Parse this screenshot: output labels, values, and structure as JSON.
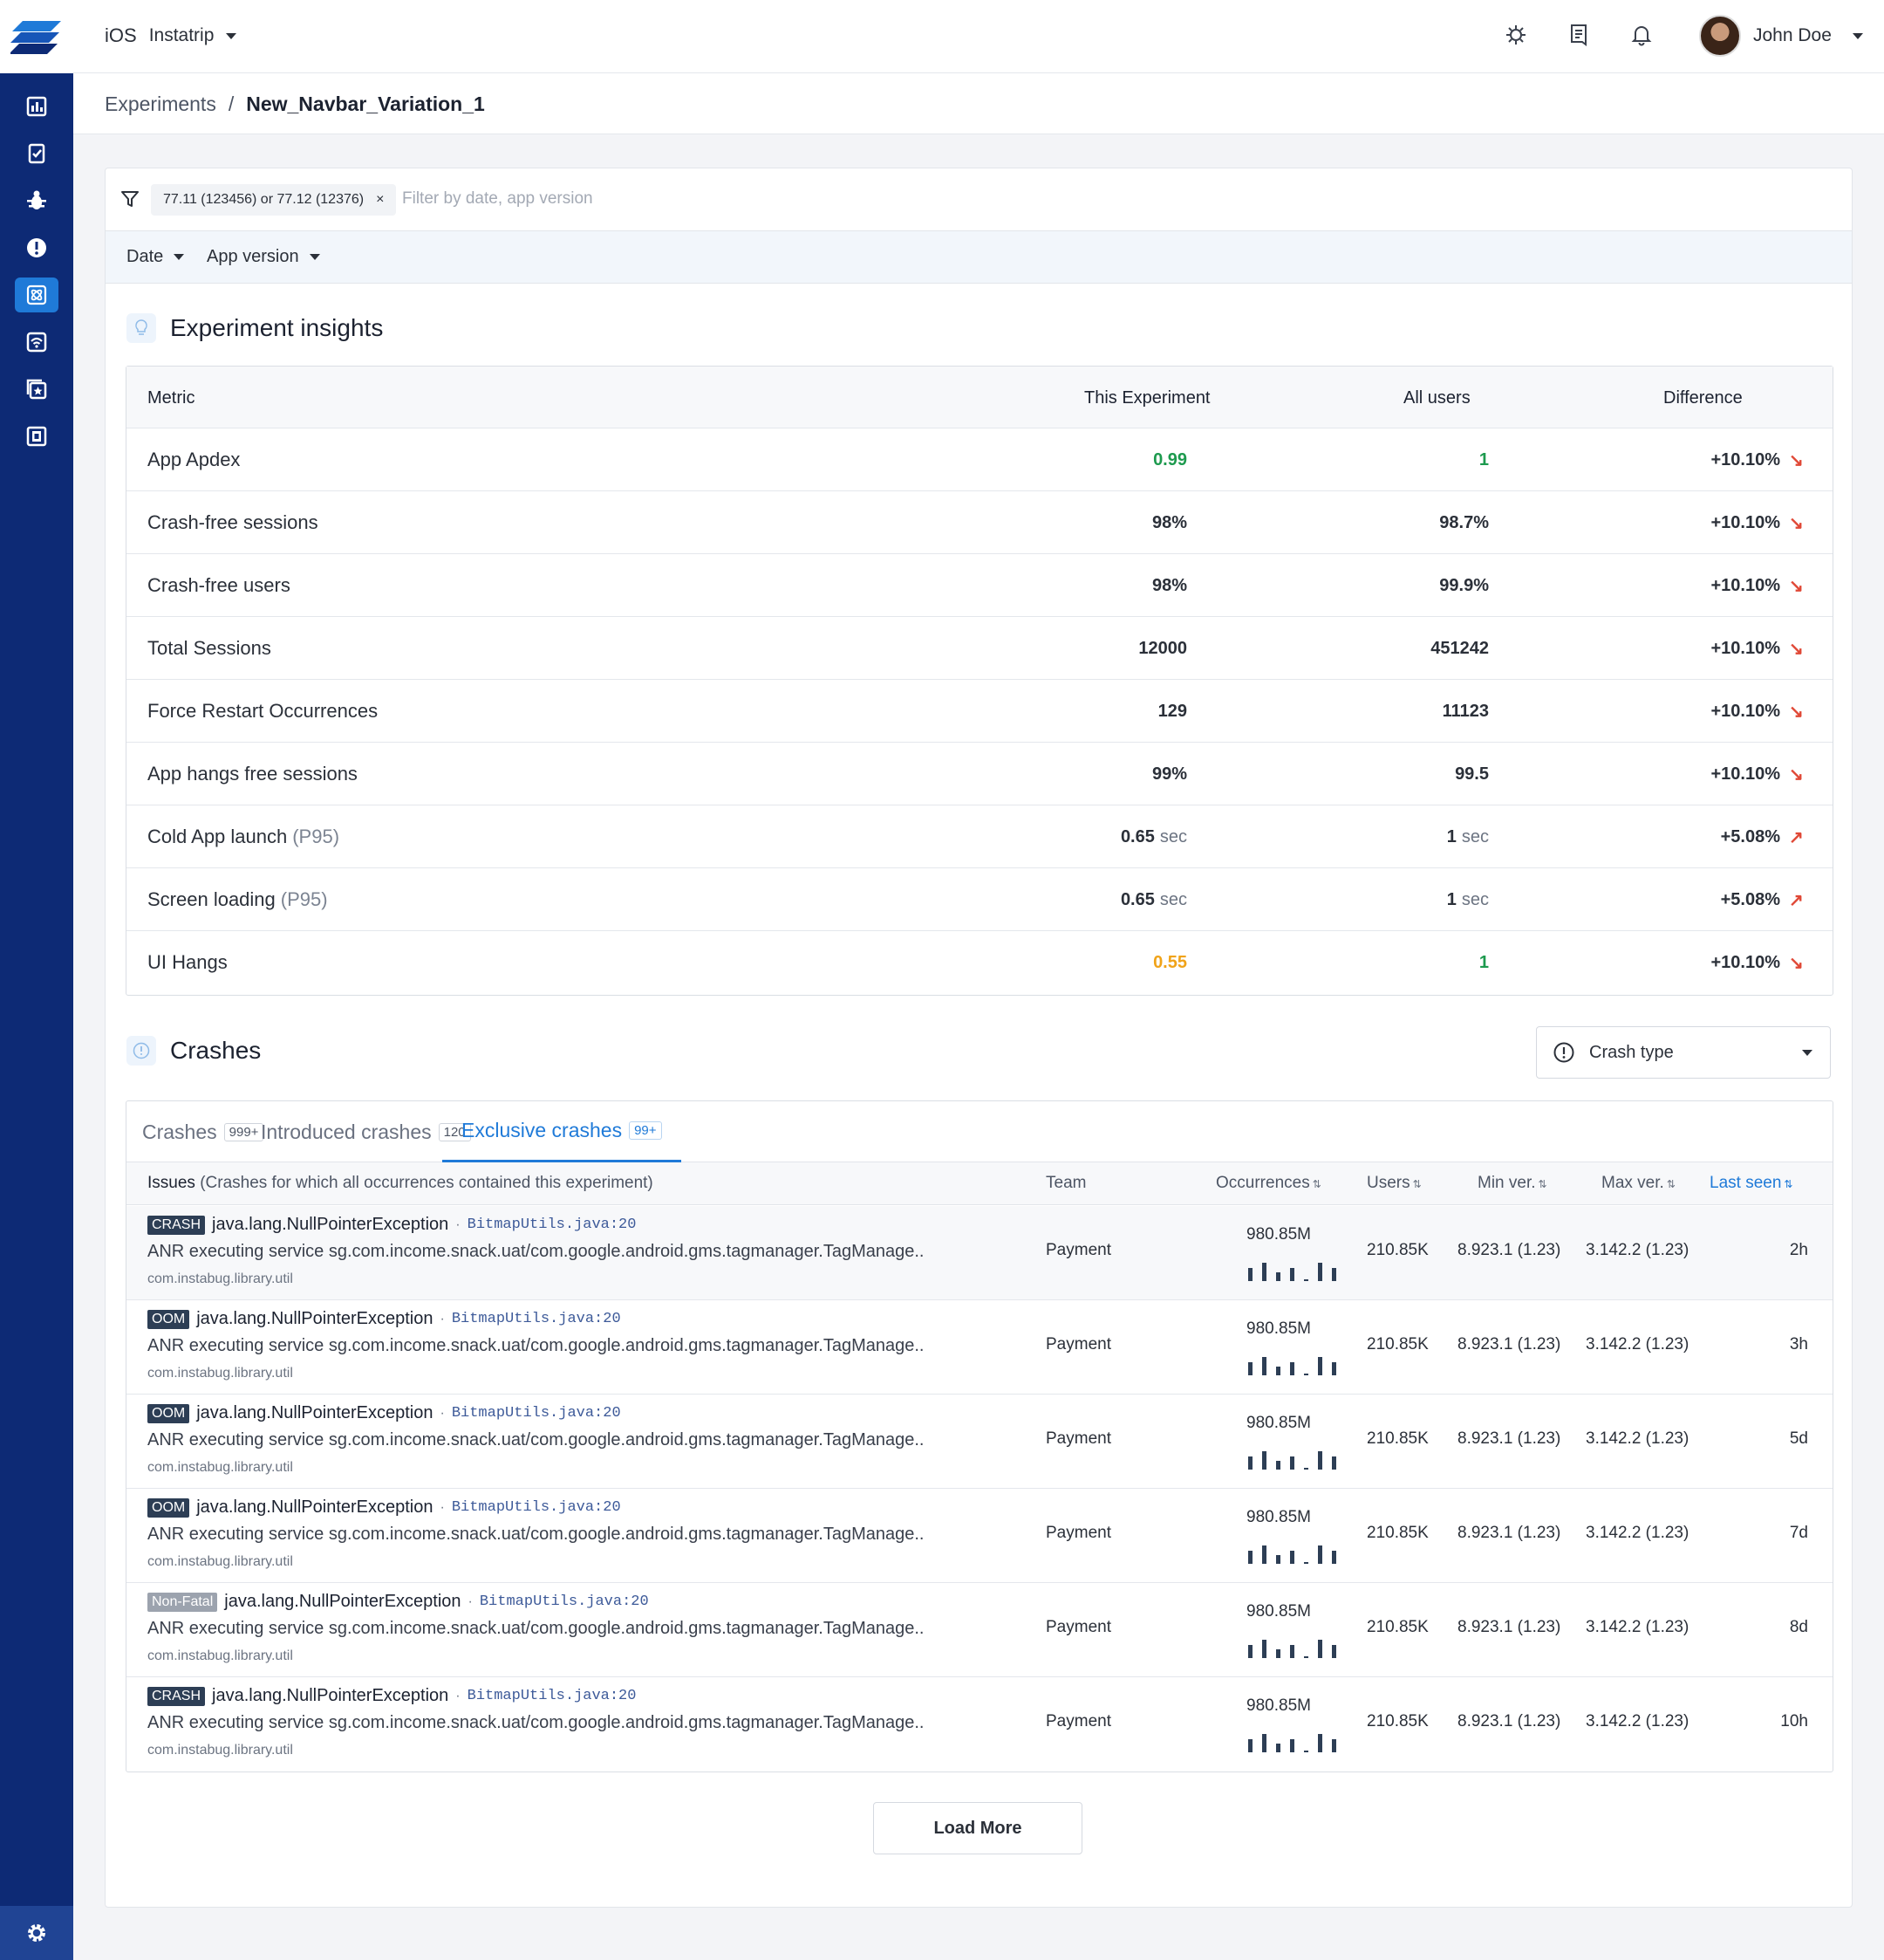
{
  "header": {
    "platform": "iOS",
    "app_name": "Instatrip",
    "user_name": "John Doe"
  },
  "breadcrumb": {
    "parent": "Experiments",
    "separator": "/",
    "current": "New_Navbar_Variation_1"
  },
  "filter": {
    "chip": "77.11 (123456) or 77.12 (12376)",
    "chip_remove": "×",
    "placeholder": "Filter by date, app version",
    "date_label": "Date",
    "app_version_label": "App version"
  },
  "insights": {
    "title": "Experiment insights",
    "headers": {
      "metric": "Metric",
      "experiment": "This Experiment",
      "all_users": "All users",
      "difference": "Difference"
    },
    "rows": [
      {
        "name": "App Apdex",
        "sub": "",
        "exp": "0.99",
        "exp_unit": "",
        "exp_color": "green",
        "all": "1",
        "all_unit": "",
        "all_color": "green",
        "diff": "+10.10%",
        "trend": "down",
        "trend_symbol": "↘"
      },
      {
        "name": "Crash-free sessions",
        "sub": "",
        "exp": "98%",
        "exp_unit": "",
        "exp_color": "",
        "all": "98.7%",
        "all_unit": "",
        "all_color": "",
        "diff": "+10.10%",
        "trend": "down",
        "trend_symbol": "↘"
      },
      {
        "name": "Crash-free users",
        "sub": "",
        "exp": "98%",
        "exp_unit": "",
        "exp_color": "",
        "all": "99.9%",
        "all_unit": "",
        "all_color": "",
        "diff": "+10.10%",
        "trend": "down",
        "trend_symbol": "↘"
      },
      {
        "name": "Total Sessions",
        "sub": "",
        "exp": "12000",
        "exp_unit": "",
        "exp_color": "",
        "all": "451242",
        "all_unit": "",
        "all_color": "",
        "diff": "+10.10%",
        "trend": "down",
        "trend_symbol": "↘"
      },
      {
        "name": "Force Restart Occurrences",
        "sub": "",
        "exp": "129",
        "exp_unit": "",
        "exp_color": "",
        "all": "11123",
        "all_unit": "",
        "all_color": "",
        "diff": "+10.10%",
        "trend": "down",
        "trend_symbol": "↘"
      },
      {
        "name": "App hangs free sessions",
        "sub": "",
        "exp": "99%",
        "exp_unit": "",
        "exp_color": "",
        "all": "99.5",
        "all_unit": "",
        "all_color": "",
        "diff": "+10.10%",
        "trend": "down",
        "trend_symbol": "↘"
      },
      {
        "name": "Cold App launch",
        "sub": "(P95)",
        "exp": "0.65",
        "exp_unit": "sec",
        "exp_color": "",
        "all": "1",
        "all_unit": "sec",
        "all_color": "",
        "diff": "+5.08%",
        "trend": "up",
        "trend_symbol": "↗"
      },
      {
        "name": "Screen loading",
        "sub": "(P95)",
        "exp": "0.65",
        "exp_unit": "sec",
        "exp_color": "",
        "all": "1",
        "all_unit": "sec",
        "all_color": "",
        "diff": "+5.08%",
        "trend": "up",
        "trend_symbol": "↗"
      },
      {
        "name": "UI Hangs",
        "sub": "",
        "exp": "0.55",
        "exp_unit": "",
        "exp_color": "orange",
        "all": "1",
        "all_unit": "",
        "all_color": "green",
        "diff": "+10.10%",
        "trend": "down",
        "trend_symbol": "↘"
      }
    ]
  },
  "crashes": {
    "title": "Crashes",
    "crash_type_label": "Crash type",
    "tabs": [
      {
        "label": "Crashes",
        "badge": "999+",
        "active": false
      },
      {
        "label": "Introduced crashes",
        "badge": "120",
        "active": false
      },
      {
        "label": "Exclusive crashes",
        "badge": "99+",
        "active": true
      }
    ],
    "headers": {
      "issues": "Issues",
      "issues_note": "(Crashes for which all occurrences contained this experiment)",
      "team": "Team",
      "occurrences": "Occurrences",
      "users": "Users",
      "min_ver": "Min ver.",
      "max_ver": "Max ver.",
      "last_seen": "Last seen",
      "sort_icon": "⇅"
    },
    "rows": [
      {
        "tag": "CRASH",
        "exception": "java.lang.NullPointerException",
        "file": "BitmapUtils.java:20",
        "desc": "ANR executing service sg.com.income.snack.uat/com.google.android.gms.tagmanager.TagManage..",
        "pkg": "com.instabug.library.util",
        "team": "Payment",
        "occurrences": "980.85M",
        "spark": [
          0.7,
          0.95,
          0.45,
          0.7,
          0.1,
          0.95,
          0.7
        ],
        "users": "210.85K",
        "min_ver": "8.923.1 (1.23)",
        "max_ver": "3.142.2 (1.23)",
        "last_seen": "2h"
      },
      {
        "tag": "OOM",
        "exception": "java.lang.NullPointerException",
        "file": "BitmapUtils.java:20",
        "desc": "ANR executing service sg.com.income.snack.uat/com.google.android.gms.tagmanager.TagManage..",
        "pkg": "com.instabug.library.util",
        "team": "Payment",
        "occurrences": "980.85M",
        "spark": [
          0.7,
          0.95,
          0.45,
          0.7,
          0.1,
          0.95,
          0.7
        ],
        "users": "210.85K",
        "min_ver": "8.923.1 (1.23)",
        "max_ver": "3.142.2 (1.23)",
        "last_seen": "3h"
      },
      {
        "tag": "OOM",
        "exception": "java.lang.NullPointerException",
        "file": "BitmapUtils.java:20",
        "desc": "ANR executing service sg.com.income.snack.uat/com.google.android.gms.tagmanager.TagManage..",
        "pkg": "com.instabug.library.util",
        "team": "Payment",
        "occurrences": "980.85M",
        "spark": [
          0.7,
          0.95,
          0.45,
          0.7,
          0.1,
          0.95,
          0.7
        ],
        "users": "210.85K",
        "min_ver": "8.923.1 (1.23)",
        "max_ver": "3.142.2 (1.23)",
        "last_seen": "5d"
      },
      {
        "tag": "OOM",
        "exception": "java.lang.NullPointerException",
        "file": "BitmapUtils.java:20",
        "desc": "ANR executing service sg.com.income.snack.uat/com.google.android.gms.tagmanager.TagManage..",
        "pkg": "com.instabug.library.util",
        "team": "Payment",
        "occurrences": "980.85M",
        "spark": [
          0.7,
          0.95,
          0.45,
          0.7,
          0.1,
          0.95,
          0.7
        ],
        "users": "210.85K",
        "min_ver": "8.923.1 (1.23)",
        "max_ver": "3.142.2 (1.23)",
        "last_seen": "7d"
      },
      {
        "tag": "Non-Fatal",
        "exception": "java.lang.NullPointerException",
        "file": "BitmapUtils.java:20",
        "desc": "ANR executing service sg.com.income.snack.uat/com.google.android.gms.tagmanager.TagManage..",
        "pkg": "com.instabug.library.util",
        "team": "Payment",
        "occurrences": "980.85M",
        "spark": [
          0.7,
          0.95,
          0.45,
          0.7,
          0.1,
          0.95,
          0.7
        ],
        "users": "210.85K",
        "min_ver": "8.923.1 (1.23)",
        "max_ver": "3.142.2 (1.23)",
        "last_seen": "8d"
      },
      {
        "tag": "CRASH",
        "exception": "java.lang.NullPointerException",
        "file": "BitmapUtils.java:20",
        "desc": "ANR executing service sg.com.income.snack.uat/com.google.android.gms.tagmanager.TagManage..",
        "pkg": "com.instabug.library.util",
        "team": "Payment",
        "occurrences": "980.85M",
        "spark": [
          0.7,
          0.95,
          0.45,
          0.7,
          0.1,
          0.95,
          0.7
        ],
        "users": "210.85K",
        "min_ver": "8.923.1 (1.23)",
        "max_ver": "3.142.2 (1.23)",
        "last_seen": "10h"
      }
    ],
    "load_more": "Load More"
  },
  "colors": {
    "sidebar": "#0d2a75",
    "accent": "#1f7ad8",
    "green": "#1d9a4e",
    "orange": "#f0a319",
    "trend_red": "#e04836"
  },
  "icons": {
    "sidebar": [
      "dashboard-icon",
      "reports-icon",
      "bugs-icon",
      "crashes-icon",
      "experiments-icon",
      "network-icon",
      "releases-icon",
      "surveys-icon"
    ],
    "top": [
      "integrations-icon",
      "docs-icon",
      "notifications-icon"
    ]
  }
}
